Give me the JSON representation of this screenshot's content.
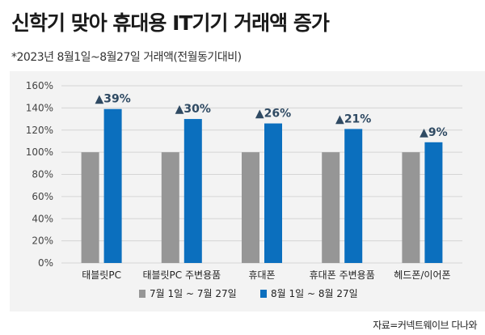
{
  "header": {
    "title": "신학기 맞아 휴대용 IT기기 거래액 증가",
    "subtitle": "*2023년 8월1일~8월27일 거래액(전월동기대비)"
  },
  "source": "자료=커넥트웨이브 다나와",
  "colors": {
    "series_gray": "#969696",
    "series_blue": "#0b6fbe",
    "panel_bg": "#f3f3f3",
    "marker": "#2f4a63"
  },
  "chart_data": {
    "type": "bar",
    "categories": [
      "태블릿PC",
      "태블릿PC 주변용품",
      "휴대폰",
      "휴대폰 주변용품",
      "헤드폰/이어폰"
    ],
    "series": [
      {
        "name": "7월 1일 ~ 7월 27일",
        "values": [
          100,
          100,
          100,
          100,
          100
        ]
      },
      {
        "name": "8월 1일 ~ 8월 27일",
        "values": [
          139,
          130,
          126,
          121,
          109
        ]
      }
    ],
    "annotations": [
      "▲39%",
      "▲30%",
      "▲26%",
      "▲21%",
      "▲9%"
    ],
    "yticks": [
      "0%",
      "20%",
      "40%",
      "60%",
      "80%",
      "100%",
      "120%",
      "140%",
      "160%"
    ],
    "ylim": [
      0,
      160
    ],
    "grid": true,
    "legend_position": "bottom"
  }
}
